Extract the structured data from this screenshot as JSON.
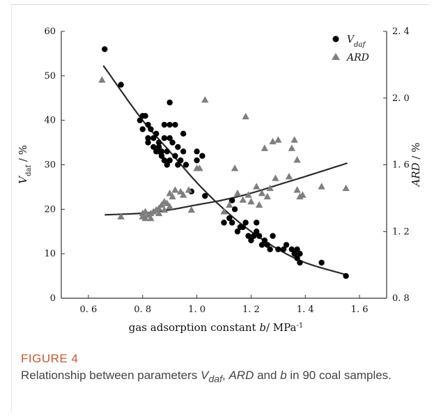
{
  "figure": {
    "label": "FIGURE 4",
    "caption_part1": "Relationship between parameters ",
    "caption_vdaf": "V",
    "caption_vdaf_sub": "daf",
    "caption_part2": ", ",
    "caption_ard": "ARD",
    "caption_part3": " and ",
    "caption_b": "b",
    "caption_part4": " in 90 coal samples."
  },
  "chart_data": {
    "type": "scatter",
    "xlabel": "gas adsorption constant b/ MPa-1",
    "ylabel_left": "Vdaf / %",
    "ylabel_right": "ARD / %",
    "xlim": [
      0.5,
      1.7
    ],
    "ylim_left": [
      0,
      60
    ],
    "ylim_right": [
      0.8,
      2.4
    ],
    "x_ticks": [
      0.6,
      0.8,
      1.0,
      1.2,
      1.4,
      1.6
    ],
    "x_tick_labels": [
      "0. 6",
      "0. 8",
      "1. 0",
      "1. 2",
      "1. 4",
      "1. 6"
    ],
    "y_left_ticks": [
      0,
      10,
      20,
      30,
      40,
      50,
      60
    ],
    "y_right_ticks": [
      0.8,
      1.2,
      1.6,
      2.0,
      2.4
    ],
    "y_right_tick_labels": [
      "0. 8",
      "1. 2",
      "1. 6",
      "2. 0",
      "2. 4"
    ],
    "legend_position": "top-right",
    "colors": {
      "vdaf": "#000000",
      "ard": "#7f7f7f",
      "fit": "#2a2a2a"
    },
    "series": [
      {
        "name": "Vdaf",
        "marker": "circle",
        "axis": "left",
        "x": [
          0.66,
          0.72,
          0.79,
          0.8,
          0.81,
          0.82,
          0.82,
          0.83,
          0.84,
          0.84,
          0.85,
          0.85,
          0.86,
          0.86,
          0.87,
          0.87,
          0.88,
          0.88,
          0.89,
          0.89,
          0.9,
          0.9,
          0.9,
          0.91,
          0.92,
          0.93,
          0.93,
          0.94,
          0.95,
          0.96,
          0.98,
          1.0,
          1.02,
          1.03,
          1.1,
          1.12,
          1.13,
          1.14,
          1.15,
          1.16,
          1.17,
          1.18,
          1.19,
          1.2,
          1.21,
          1.22,
          1.23,
          1.24,
          1.25,
          1.26,
          1.27,
          1.28,
          1.3,
          1.32,
          1.33,
          1.35,
          1.36,
          1.37,
          1.37,
          1.38,
          1.38,
          1.46,
          1.55,
          0.8,
          0.82,
          0.86,
          0.88,
          0.9,
          0.92,
          0.95,
          1.0,
          1.13,
          1.22
        ],
        "y": [
          56,
          48,
          40,
          38,
          41,
          36,
          35,
          38,
          36,
          34,
          37,
          33,
          35,
          34,
          33,
          32,
          36,
          31,
          33,
          30,
          44,
          39,
          31,
          35,
          32,
          34,
          30,
          31,
          33,
          30,
          24,
          33,
          32,
          23,
          17,
          18,
          17,
          20,
          15,
          16,
          16,
          17,
          14,
          13,
          14,
          15,
          14,
          12,
          13,
          12,
          11,
          14,
          11,
          11,
          12,
          11,
          10,
          11,
          9,
          10,
          8,
          8,
          5,
          41,
          39,
          33,
          39,
          36,
          39,
          37,
          31,
          22,
          17
        ]
      },
      {
        "name": "ARD",
        "marker": "triangle",
        "axis": "right",
        "x": [
          0.65,
          0.72,
          0.8,
          0.8,
          0.81,
          0.81,
          0.82,
          0.83,
          0.83,
          0.84,
          0.85,
          0.86,
          0.86,
          0.87,
          0.88,
          0.88,
          0.89,
          0.9,
          0.9,
          0.91,
          0.92,
          0.94,
          0.95,
          0.97,
          0.98,
          1.0,
          1.01,
          1.03,
          1.1,
          1.12,
          1.14,
          1.15,
          1.17,
          1.18,
          1.19,
          1.2,
          1.22,
          1.23,
          1.24,
          1.25,
          1.26,
          1.27,
          1.28,
          1.29,
          1.3,
          1.34,
          1.35,
          1.36,
          1.37,
          1.37,
          1.38,
          1.39,
          1.46,
          1.55
        ],
        "y": [
          2.11,
          1.29,
          1.29,
          1.31,
          1.28,
          1.32,
          1.3,
          1.28,
          1.31,
          1.32,
          1.33,
          1.31,
          1.34,
          1.36,
          1.33,
          1.38,
          1.37,
          1.35,
          1.43,
          1.41,
          1.45,
          1.44,
          1.42,
          1.45,
          1.33,
          1.58,
          1.58,
          1.99,
          1.32,
          1.36,
          1.58,
          1.43,
          1.39,
          1.89,
          1.42,
          1.38,
          1.47,
          1.36,
          1.43,
          1.7,
          1.41,
          1.46,
          1.74,
          1.52,
          1.75,
          1.53,
          1.7,
          1.75,
          1.45,
          1.63,
          1.41,
          1.42,
          1.47,
          1.46
        ]
      }
    ],
    "fit_curves": [
      {
        "name": "Vdaf fit",
        "axis": "left",
        "x_range": [
          0.655,
          1.555
        ]
      },
      {
        "name": "ARD fit",
        "axis": "right",
        "x_range": [
          0.66,
          1.555
        ]
      }
    ]
  }
}
